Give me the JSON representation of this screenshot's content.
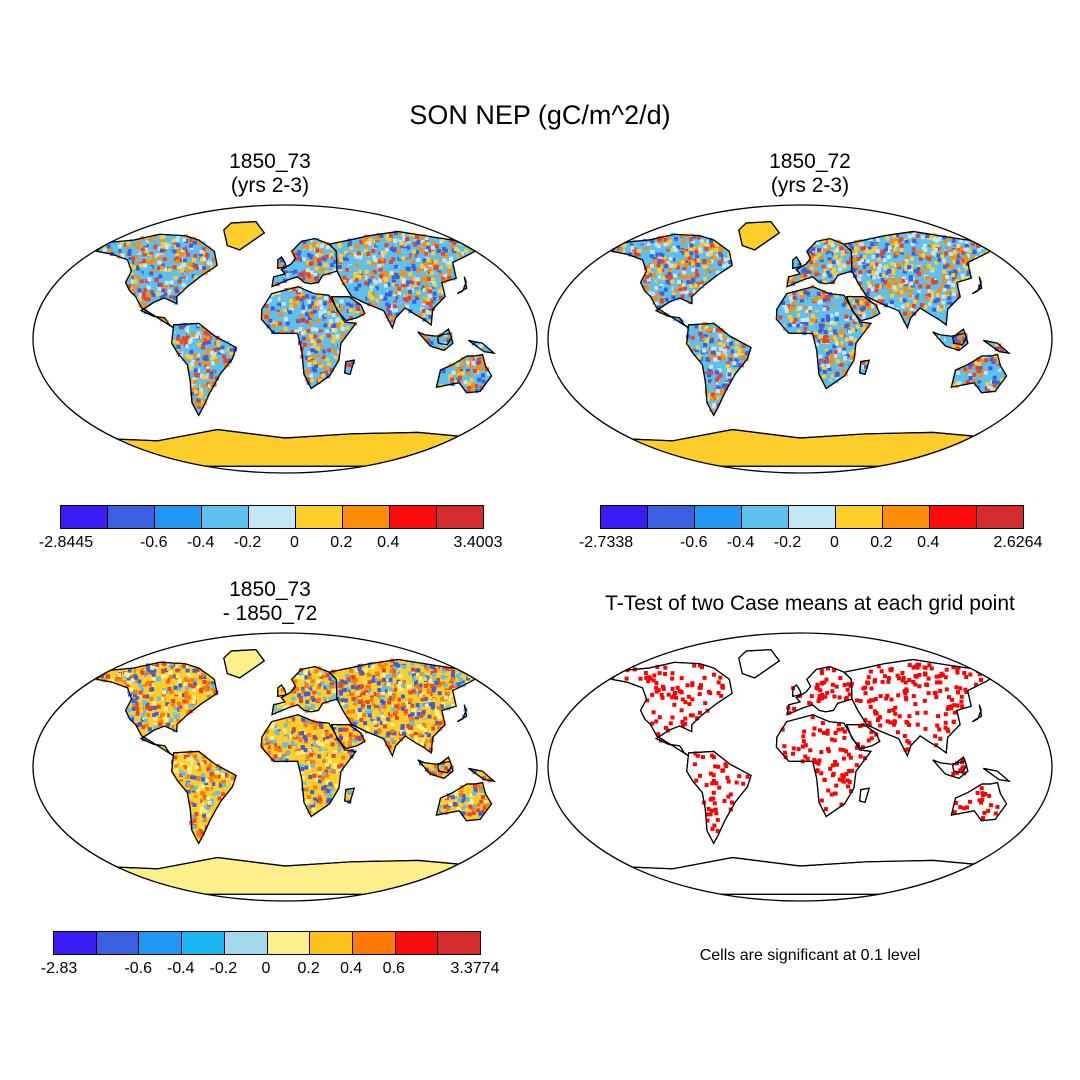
{
  "title": "SON NEP (gC/m^2/d)",
  "panels": [
    {
      "id": "p1",
      "title_line1": "1850_73",
      "title_line2": "(yrs 2-3)"
    },
    {
      "id": "p2",
      "title_line1": "1850_72",
      "title_line2": "(yrs 2-3)"
    },
    {
      "id": "p3",
      "title_line1": "1850_73",
      "title_line2": "- 1850_72"
    },
    {
      "id": "p4",
      "title_line1": "T-Test of two Case means at each grid point",
      "title_line2": ""
    }
  ],
  "colorbars": {
    "top_left": {
      "colors": [
        "#3b1cf5",
        "#3a5fe0",
        "#2196f3",
        "#5dc0ee",
        "#c5e7f5",
        "#fdce2a",
        "#fd8c08",
        "#fb0b0b",
        "#d42c2c"
      ],
      "labels": [
        "-2.8445",
        "-0.6",
        "-0.4",
        "-0.2",
        "0",
        "0.2",
        "0.4",
        "3.4003"
      ]
    },
    "top_right": {
      "colors": [
        "#3b1cf5",
        "#3a5fe0",
        "#2196f3",
        "#5dc0ee",
        "#c5e7f5",
        "#fdce2a",
        "#fd8c08",
        "#fb0b0b",
        "#d42c2c"
      ],
      "labels": [
        "-2.7338",
        "-0.6",
        "-0.4",
        "-0.2",
        "0",
        "0.2",
        "0.4",
        "2.6264"
      ]
    },
    "bottom_left": {
      "colors": [
        "#3b1cf5",
        "#3a5fe0",
        "#2196f3",
        "#1cb7f2",
        "#a4d8ee",
        "#fdf08a",
        "#fdc31a",
        "#fd7a06",
        "#fb0b0b",
        "#d42c2c"
      ],
      "labels": [
        "-2.83",
        "-0.6",
        "-0.4",
        "-0.2",
        "0",
        "0.2",
        "0.4",
        "0.6",
        "3.3774"
      ]
    }
  },
  "significance_note": "Cells are significant at 0.1 level",
  "colors": {
    "land_positive": "#e8442a",
    "land_warm": "#fdce2a",
    "land_cool": "#5dc0ee",
    "land_neg": "#3a5fe0",
    "antarctica_top": "#fdce2a",
    "antarctica_diff": "#fdf08a",
    "significant": "#ff0000"
  }
}
